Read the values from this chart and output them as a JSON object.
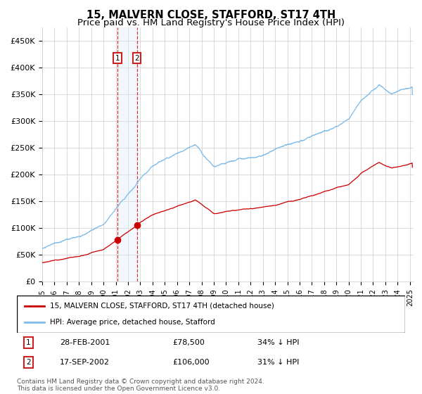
{
  "title": "15, MALVERN CLOSE, STAFFORD, ST17 4TH",
  "subtitle": "Price paid vs. HM Land Registry's House Price Index (HPI)",
  "ylim": [
    0,
    475000
  ],
  "yticks": [
    0,
    50000,
    100000,
    150000,
    200000,
    250000,
    300000,
    350000,
    400000,
    450000
  ],
  "ytick_labels": [
    "£0",
    "£50K",
    "£100K",
    "£150K",
    "£200K",
    "£250K",
    "£300K",
    "£350K",
    "£400K",
    "£450K"
  ],
  "hpi_color": "#7fbbe8",
  "price_color": "#cc0000",
  "sale1_date": 2001.15,
  "sale1_price": 78500,
  "sale2_date": 2002.72,
  "sale2_price": 106000,
  "shade_color": "#daeaf7",
  "vline_color": "#cc2222",
  "legend_label_price": "15, MALVERN CLOSE, STAFFORD, ST17 4TH (detached house)",
  "legend_label_hpi": "HPI: Average price, detached house, Stafford",
  "footer": "Contains HM Land Registry data © Crown copyright and database right 2024.\nThis data is licensed under the Open Government Licence v3.0.",
  "title_fontsize": 10.5,
  "subtitle_fontsize": 9.5,
  "tick_fontsize": 8,
  "background_color": "#ffffff",
  "grid_color": "#cccccc",
  "row1_num": "1",
  "row1_date": "28-FEB-2001",
  "row1_price": "£78,500",
  "row1_pct": "34% ↓ HPI",
  "row2_num": "2",
  "row2_date": "17-SEP-2002",
  "row2_price": "£106,000",
  "row2_pct": "31% ↓ HPI"
}
